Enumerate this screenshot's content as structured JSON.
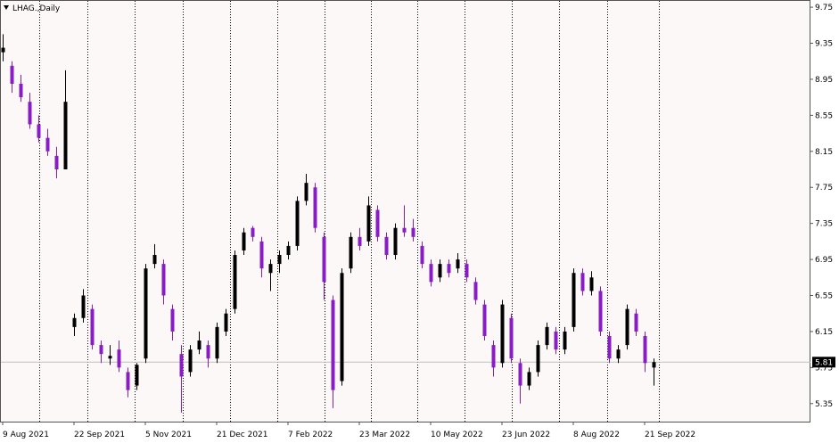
{
  "chart_data": {
    "type": "candlestick",
    "title": "LHAG.,Daily",
    "open": [
      9.25,
      9.1,
      8.9,
      8.7,
      8.45,
      8.3,
      8.1,
      7.95,
      6.2,
      6.3,
      6.4,
      6.0,
      5.85,
      5.95,
      5.7,
      5.55,
      5.85,
      6.9,
      6.9,
      6.4,
      5.9,
      5.7,
      5.95,
      6.0,
      5.85,
      6.15,
      6.4,
      7.05,
      7.3,
      7.15,
      6.8,
      6.9,
      7.0,
      7.1,
      7.6,
      7.75,
      7.2,
      6.5,
      5.6,
      6.85,
      7.2,
      7.15,
      7.5,
      7.2,
      7.0,
      7.3,
      7.3,
      7.1,
      6.9,
      6.75,
      6.9,
      6.85,
      6.9,
      6.7,
      6.45,
      6.0,
      5.8,
      6.3,
      5.8,
      5.55,
      5.7,
      6.0,
      6.15,
      5.95,
      6.2,
      6.8,
      6.6,
      6.6,
      6.1,
      5.85,
      6.0,
      6.35,
      6.1,
      5.75
    ],
    "high": [
      9.45,
      9.15,
      9.0,
      8.8,
      8.55,
      8.4,
      8.2,
      9.05,
      6.35,
      6.62,
      6.45,
      6.05,
      6.0,
      6.05,
      5.75,
      5.8,
      6.9,
      7.12,
      6.95,
      6.45,
      6.0,
      6.0,
      6.15,
      6.05,
      6.25,
      6.4,
      7.05,
      7.3,
      7.32,
      7.2,
      6.95,
      7.05,
      7.15,
      7.65,
      7.9,
      7.8,
      7.25,
      6.55,
      6.85,
      7.25,
      7.3,
      7.65,
      7.55,
      7.25,
      7.35,
      7.55,
      7.4,
      7.15,
      6.95,
      6.95,
      6.95,
      7.02,
      6.95,
      6.75,
      6.5,
      6.05,
      6.5,
      6.35,
      5.85,
      5.75,
      6.05,
      6.25,
      6.2,
      6.2,
      6.85,
      6.85,
      6.82,
      6.65,
      6.15,
      6.0,
      6.45,
      6.4,
      6.15,
      5.85
    ],
    "low": [
      9.15,
      8.8,
      8.7,
      8.4,
      8.25,
      8.1,
      7.85,
      7.95,
      6.1,
      6.25,
      5.95,
      5.8,
      5.78,
      5.7,
      5.42,
      5.5,
      5.8,
      6.85,
      6.45,
      6.05,
      5.25,
      5.65,
      5.9,
      5.75,
      5.8,
      6.1,
      6.35,
      7.0,
      7.15,
      6.75,
      6.6,
      6.8,
      6.95,
      7.05,
      7.55,
      7.25,
      6.5,
      5.3,
      5.55,
      6.8,
      7.05,
      7.1,
      7.15,
      6.95,
      6.95,
      7.2,
      7.15,
      6.85,
      6.65,
      6.7,
      6.75,
      6.8,
      6.7,
      6.45,
      6.05,
      5.65,
      5.75,
      5.8,
      5.35,
      5.5,
      5.65,
      5.95,
      5.9,
      5.9,
      6.15,
      6.55,
      6.55,
      6.1,
      5.8,
      5.8,
      5.95,
      6.1,
      5.7,
      5.55
    ],
    "close": [
      9.3,
      8.9,
      8.75,
      8.45,
      8.3,
      8.15,
      7.95,
      8.7,
      6.3,
      6.55,
      6.0,
      5.9,
      5.88,
      5.75,
      5.5,
      5.78,
      6.85,
      7.0,
      6.55,
      6.15,
      5.65,
      5.95,
      6.05,
      5.85,
      6.2,
      6.35,
      7.0,
      7.25,
      7.2,
      6.85,
      6.9,
      7.0,
      7.1,
      7.6,
      7.8,
      7.3,
      6.7,
      5.5,
      6.8,
      7.2,
      7.1,
      7.55,
      7.2,
      7.0,
      7.3,
      7.25,
      7.2,
      6.9,
      6.7,
      6.9,
      6.8,
      6.95,
      6.75,
      6.5,
      6.1,
      5.75,
      6.45,
      5.85,
      5.55,
      5.7,
      6.0,
      6.2,
      5.95,
      6.15,
      6.8,
      6.6,
      6.75,
      6.15,
      5.85,
      5.95,
      6.4,
      6.15,
      5.8,
      5.81
    ],
    "up_color": "#000000",
    "down_color": "#8a1cc8",
    "last_price": 5.81,
    "xlim": [
      -0.3,
      90.6
    ],
    "xticks": [
      {
        "value": 0,
        "label": "9 Aug 2021"
      },
      {
        "value": 8,
        "label": "22 Sep 2021"
      },
      {
        "value": 16,
        "label": "5 Nov 2021"
      },
      {
        "value": 24,
        "label": "21 Dec 2021"
      },
      {
        "value": 32,
        "label": "7 Feb 2022"
      },
      {
        "value": 40,
        "label": "23 Mar 2022"
      },
      {
        "value": 48,
        "label": "10 May 2022"
      },
      {
        "value": 56,
        "label": "23 Jun 2022"
      },
      {
        "value": 64,
        "label": "8 Aug 2022"
      },
      {
        "value": 72,
        "label": "21 Sep 2022"
      }
    ],
    "ylim": [
      5.15,
      9.83
    ],
    "yticks": [
      5.35,
      5.75,
      6.15,
      6.55,
      6.95,
      7.35,
      7.75,
      8.15,
      8.55,
      8.95,
      9.35,
      9.75
    ]
  }
}
